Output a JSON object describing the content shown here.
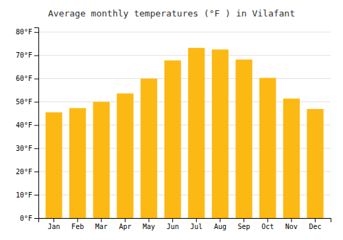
{
  "chart_data": {
    "type": "bar",
    "title": "Average monthly temperatures (°F ) in Vilafant",
    "categories": [
      "Jan",
      "Feb",
      "Mar",
      "Apr",
      "May",
      "Jun",
      "Jul",
      "Aug",
      "Sep",
      "Oct",
      "Nov",
      "Dec"
    ],
    "values": [
      45.5,
      47.3,
      50.0,
      53.6,
      60.0,
      67.8,
      73.2,
      72.5,
      68.2,
      60.3,
      51.4,
      46.9
    ],
    "color": "#FDB913",
    "ylim": [
      0,
      82
    ],
    "yticks": [
      {
        "value": 0,
        "label": "0°F"
      },
      {
        "value": 10,
        "label": "10°F"
      },
      {
        "value": 20,
        "label": "20°F"
      },
      {
        "value": 30,
        "label": "30°F"
      },
      {
        "value": 40,
        "label": "40°F"
      },
      {
        "value": 50,
        "label": "50°F"
      },
      {
        "value": 60,
        "label": "60°F"
      },
      {
        "value": 70,
        "label": "70°F"
      },
      {
        "value": 80,
        "label": "80°F"
      }
    ],
    "grid": true
  }
}
